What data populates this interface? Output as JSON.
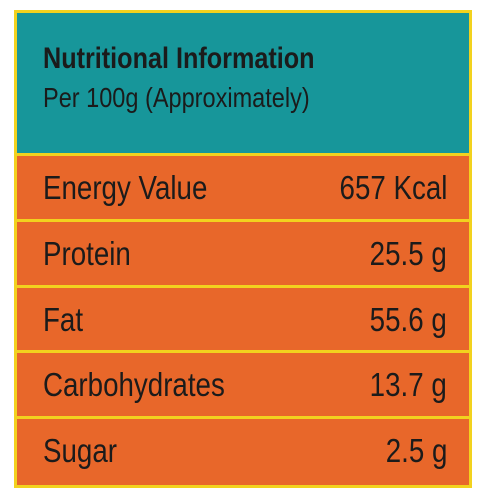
{
  "header": {
    "title": "Nutritional Information",
    "subtitle": "Per 100g (Approximately)"
  },
  "rows": [
    {
      "label": "Energy Value",
      "value": "657 Kcal"
    },
    {
      "label": "Protein",
      "value": "25.5 g"
    },
    {
      "label": "Fat",
      "value": "55.6 g"
    },
    {
      "label": "Carbohydrates",
      "value": "13.7 g"
    },
    {
      "label": "Sugar",
      "value": "2.5 g"
    }
  ],
  "colors": {
    "header_bg": "#17969a",
    "row_bg": "#e8672a",
    "border": "#f2d21e",
    "text": "#1b1b1b"
  }
}
